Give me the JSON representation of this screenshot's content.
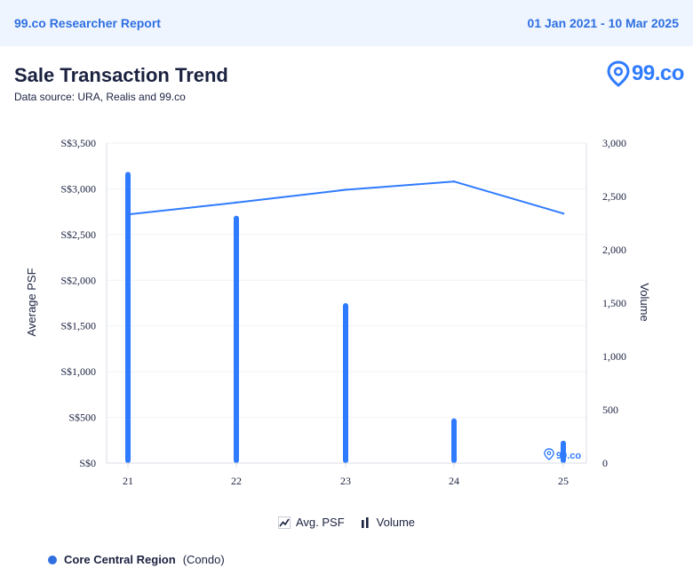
{
  "header": {
    "report_title": "99.co Researcher Report",
    "date_range": "01 Jan 2021 - 10 Mar 2025"
  },
  "title": "Sale Transaction Trend",
  "subtitle": "Data source: URA, Realis and 99.co",
  "logo_text": "99.co",
  "watermark_text": "99.co",
  "legend": {
    "avg_psf": "Avg. PSF",
    "volume": "Volume"
  },
  "region": {
    "name": "Core Central Region",
    "type": "(Condo)"
  },
  "colors": {
    "accent": "#2f6fe0",
    "series": "#2f7bff",
    "text": "#1b2240"
  },
  "chart_data": {
    "type": "line+bar",
    "categories": [
      "21",
      "22",
      "23",
      "24",
      "25"
    ],
    "series": [
      {
        "name": "Avg. PSF",
        "type": "line",
        "axis": "left",
        "values": [
          2720,
          2850,
          2990,
          3080,
          2730
        ]
      },
      {
        "name": "Volume",
        "type": "bar",
        "axis": "right",
        "values": [
          2730,
          2320,
          1500,
          420,
          210
        ]
      }
    ],
    "y_left": {
      "label": "Average PSF",
      "range": [
        0,
        3500
      ],
      "ticks": [
        "S$0",
        "S$500",
        "S$1,000",
        "S$1,500",
        "S$2,000",
        "S$2,500",
        "S$3,000",
        "S$3,500"
      ]
    },
    "y_right": {
      "label": "Volume",
      "range": [
        0,
        3000
      ],
      "ticks": [
        "0",
        "500",
        "1,000",
        "1,500",
        "2,000",
        "2,500",
        "3,000"
      ]
    },
    "grid": true
  }
}
